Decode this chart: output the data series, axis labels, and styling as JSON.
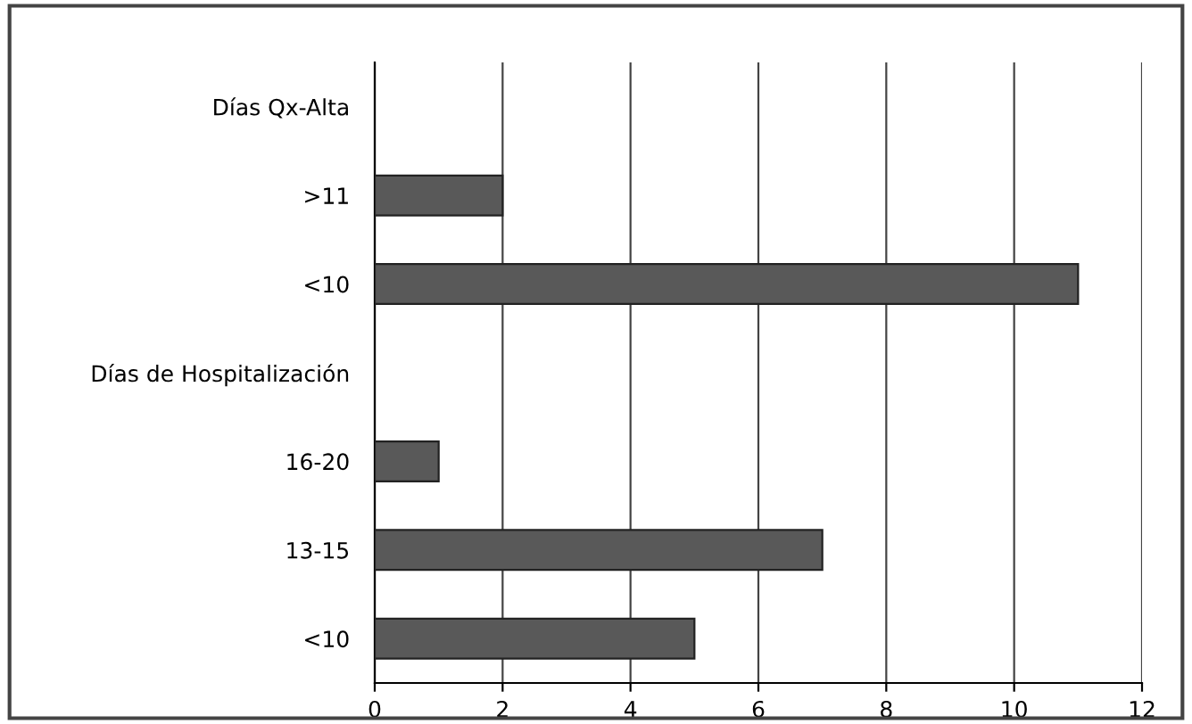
{
  "chart_data": {
    "type": "bar",
    "orientation": "horizontal",
    "categories": [
      "Días Qx-Alta",
      ">11",
      "<10",
      "Días de Hospitalización",
      "16-20",
      "13-15",
      "<10"
    ],
    "values": [
      null,
      2,
      11,
      null,
      1,
      7,
      5
    ],
    "color": "#595959",
    "xlim": [
      0,
      12
    ],
    "xticks": [
      0,
      2,
      4,
      6,
      8,
      10,
      12
    ],
    "grid": "x",
    "legend": false
  }
}
